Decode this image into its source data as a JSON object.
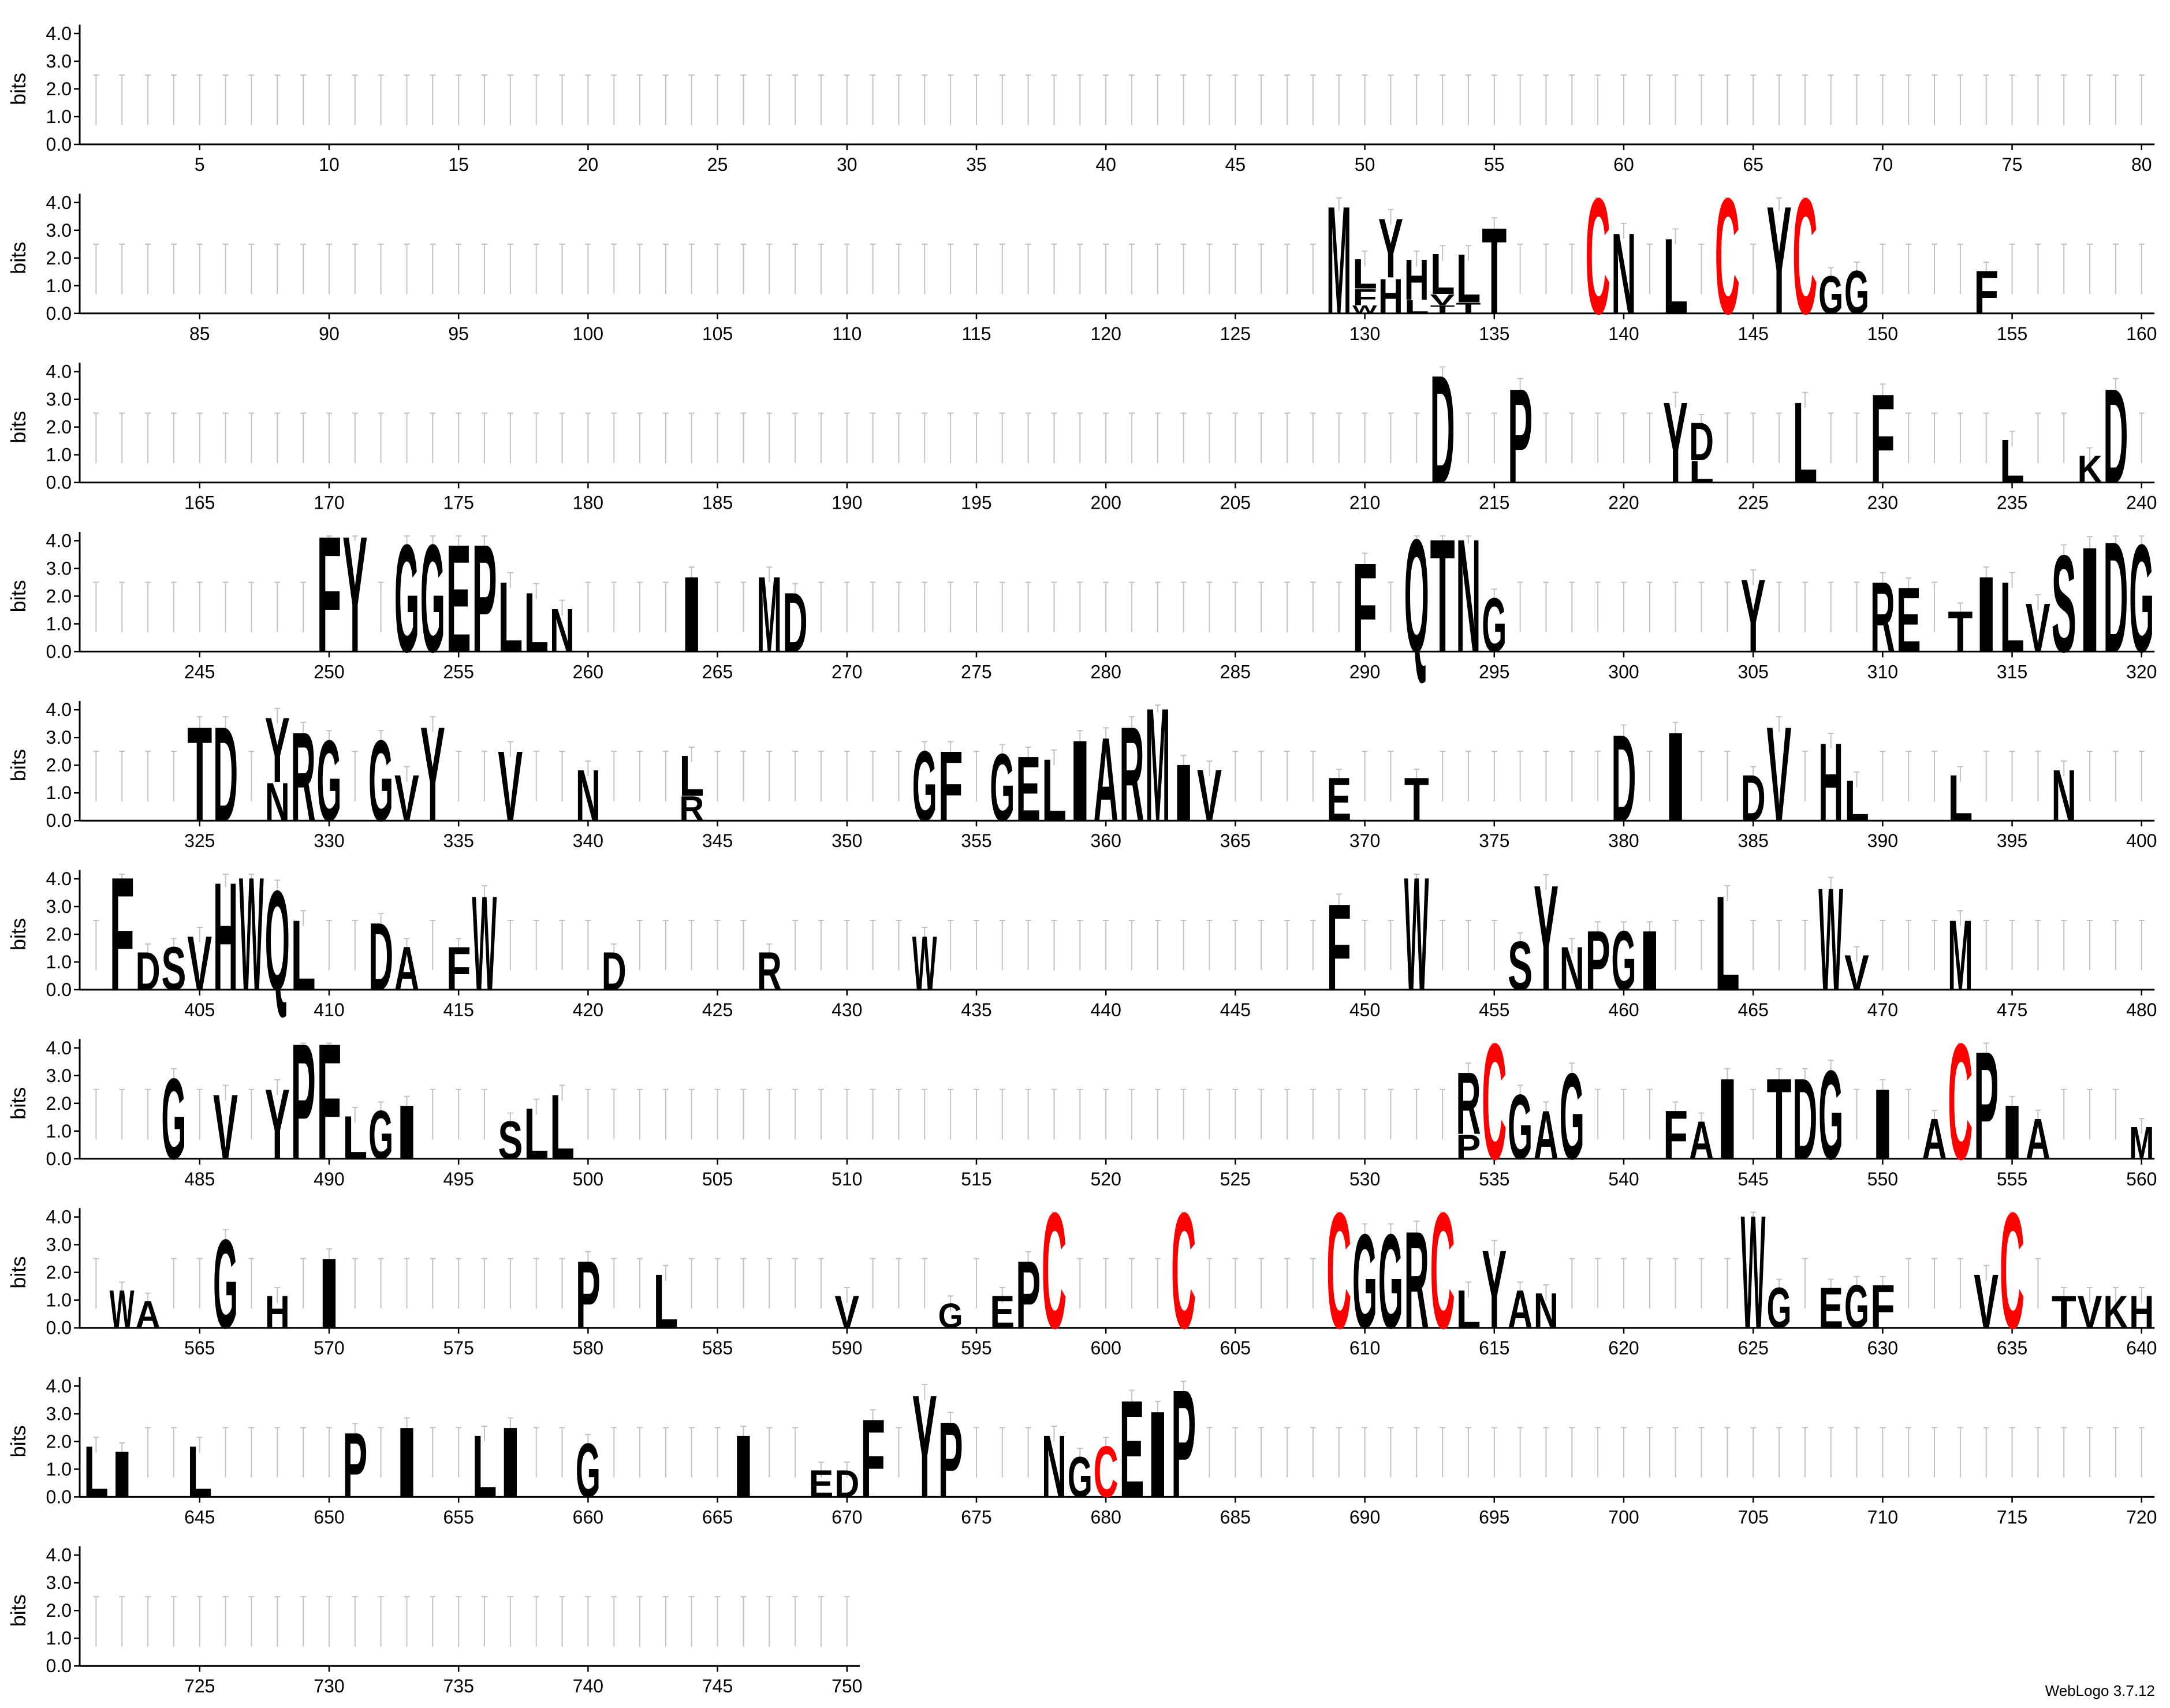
{
  "credit": "WebLogo 3.7.12",
  "colors": {
    "default": "#000000",
    "highlight": "#ff0000",
    "errorbar": "#c2c2c2"
  },
  "chart_data": {
    "type": "sequence-logo",
    "ylabel": "bits",
    "ylim": [
      0,
      4.32
    ],
    "yticks": [
      0,
      1,
      2,
      3,
      4
    ],
    "ytick_labels": [
      "0.0",
      "1.0",
      "2.0",
      "3.0",
      "4.0"
    ],
    "rows": [
      {
        "start": 1,
        "end": 80
      },
      {
        "start": 81,
        "end": 160
      },
      {
        "start": 161,
        "end": 240
      },
      {
        "start": 241,
        "end": 320
      },
      {
        "start": 321,
        "end": 400
      },
      {
        "start": 401,
        "end": 480
      },
      {
        "start": 481,
        "end": 560
      },
      {
        "start": 561,
        "end": 640
      },
      {
        "start": 641,
        "end": 720
      },
      {
        "start": 721,
        "end": 750
      }
    ],
    "columns": {
      "129": [
        [
          "M",
          4.0
        ]
      ],
      "130": [
        [
          "L",
          1.1
        ],
        [
          "F",
          0.6
        ],
        [
          "W",
          0.3
        ]
      ],
      "131": [
        [
          "Y",
          2.2
        ],
        [
          "H",
          1.3
        ]
      ],
      "132": [
        [
          "H",
          1.5
        ],
        [
          "L",
          0.5
        ]
      ],
      "133": [
        [
          "L",
          1.5
        ],
        [
          "V",
          0.4
        ],
        [
          "T",
          0.3
        ]
      ],
      "134": [
        [
          "L",
          1.8
        ],
        [
          "T",
          0.4
        ]
      ],
      "135": [
        [
          "T",
          3.2
        ]
      ],
      "139": [
        [
          "C",
          4.3
        ]
      ],
      "140": [
        [
          "N",
          3.0
        ]
      ],
      "142": [
        [
          "L",
          2.8
        ]
      ],
      "144": [
        [
          "C",
          4.3
        ]
      ],
      "146": [
        [
          "Y",
          4.0
        ]
      ],
      "147": [
        [
          "C",
          4.3
        ]
      ],
      "148": [
        [
          "G",
          1.4
        ]
      ],
      "149": [
        [
          "G",
          1.6
        ]
      ],
      "154": [
        [
          "F",
          1.6
        ]
      ],
      "213": [
        [
          "D",
          4.0
        ]
      ],
      "216": [
        [
          "P",
          3.5
        ]
      ],
      "222": [
        [
          "Y",
          3.0
        ]
      ],
      "223": [
        [
          "D",
          1.4
        ],
        [
          "L",
          0.8
        ]
      ],
      "227": [
        [
          "L",
          3.0
        ]
      ],
      "230": [
        [
          "F",
          3.3
        ]
      ],
      "235": [
        [
          "L",
          1.6
        ]
      ],
      "238": [
        [
          "K",
          1.0
        ]
      ],
      "239": [
        [
          "D",
          3.5
        ]
      ],
      "250": [
        [
          "F",
          4.3
        ]
      ],
      "251": [
        [
          "Y",
          4.3
        ]
      ],
      "253": [
        [
          "G",
          4.0
        ]
      ],
      "254": [
        [
          "G",
          4.0
        ]
      ],
      "255": [
        [
          "E",
          4.0
        ]
      ],
      "256": [
        [
          "P",
          4.0
        ]
      ],
      "257": [
        [
          "L",
          2.6
        ]
      ],
      "258": [
        [
          "L",
          2.2
        ]
      ],
      "259": [
        [
          "N",
          1.6
        ]
      ],
      "264": [
        [
          "I",
          2.8
        ]
      ],
      "267": [
        [
          "M",
          2.8
        ]
      ],
      "268": [
        [
          "D",
          2.2
        ]
      ],
      "290": [
        [
          "F",
          3.3
        ]
      ],
      "292": [
        [
          "Q",
          4.2
        ]
      ],
      "293": [
        [
          "T",
          4.2
        ]
      ],
      "294": [
        [
          "N",
          4.2
        ]
      ],
      "295": [
        [
          "G",
          2.0
        ]
      ],
      "305": [
        [
          "Y",
          2.7
        ]
      ],
      "310": [
        [
          "R",
          2.6
        ]
      ],
      "311": [
        [
          "E",
          2.4
        ]
      ],
      "313": [
        [
          "T",
          1.5
        ]
      ],
      "314": [
        [
          "I",
          2.8
        ]
      ],
      "315": [
        [
          "L",
          2.6
        ]
      ],
      "316": [
        [
          "V",
          1.8
        ]
      ],
      "317": [
        [
          "S",
          3.6
        ]
      ],
      "318": [
        [
          "I",
          3.9
        ]
      ],
      "319": [
        [
          "D",
          4.1
        ]
      ],
      "320": [
        [
          "G",
          4.0
        ]
      ],
      "325": [
        [
          "T",
          3.5
        ]
      ],
      "326": [
        [
          "D",
          3.5
        ]
      ],
      "328": [
        [
          "Y",
          2.4
        ],
        [
          "N",
          1.4
        ]
      ],
      "329": [
        [
          "R",
          3.3
        ]
      ],
      "330": [
        [
          "G",
          3.0
        ]
      ],
      "332": [
        [
          "G",
          3.0
        ]
      ],
      "333": [
        [
          "V",
          1.7
        ]
      ],
      "334": [
        [
          "Y",
          3.5
        ]
      ],
      "337": [
        [
          "V",
          2.6
        ]
      ],
      "340": [
        [
          "N",
          1.9
        ]
      ],
      "344": [
        [
          "L",
          1.5
        ],
        [
          "R",
          0.9
        ]
      ],
      "353": [
        [
          "G",
          2.6
        ]
      ],
      "354": [
        [
          "F",
          2.6
        ]
      ],
      "356": [
        [
          "G",
          2.5
        ]
      ],
      "357": [
        [
          "E",
          2.4
        ]
      ],
      "358": [
        [
          "L",
          2.3
        ]
      ],
      "359": [
        [
          "I",
          3.0
        ]
      ],
      "360": [
        [
          "A",
          3.1
        ]
      ],
      "361": [
        [
          "R",
          3.5
        ]
      ],
      "362": [
        [
          "M",
          4.2
        ]
      ],
      "363": [
        [
          "I",
          2.1
        ]
      ],
      "364": [
        [
          "V",
          1.9
        ]
      ],
      "369": [
        [
          "E",
          1.6
        ]
      ],
      "372": [
        [
          "T",
          1.6
        ]
      ],
      "380": [
        [
          "D",
          3.2
        ]
      ],
      "382": [
        [
          "I",
          3.3
        ]
      ],
      "385": [
        [
          "D",
          1.7
        ]
      ],
      "386": [
        [
          "V",
          3.5
        ]
      ],
      "388": [
        [
          "H",
          2.9
        ]
      ],
      "389": [
        [
          "L",
          1.5
        ]
      ],
      "393": [
        [
          "L",
          1.7
        ]
      ],
      "397": [
        [
          "N",
          1.9
        ]
      ],
      "402": [
        [
          "F",
          4.2
        ]
      ],
      "403": [
        [
          "D",
          1.4
        ]
      ],
      "404": [
        [
          "S",
          1.6
        ]
      ],
      "405": [
        [
          "V",
          2.0
        ]
      ],
      "406": [
        [
          "H",
          4.0
        ]
      ],
      "407": [
        [
          "W",
          4.2
        ]
      ],
      "408": [
        [
          "Q",
          3.7
        ]
      ],
      "409": [
        [
          "L",
          2.6
        ]
      ],
      "412": [
        [
          "D",
          2.5
        ]
      ],
      "413": [
        [
          "A",
          1.6
        ]
      ],
      "415": [
        [
          "F",
          1.6
        ]
      ],
      "416": [
        [
          "W",
          3.5
        ]
      ],
      "421": [
        [
          "D",
          1.4
        ]
      ],
      "427": [
        [
          "R",
          1.4
        ]
      ],
      "433": [
        [
          "W",
          2.0
        ]
      ],
      "449": [
        [
          "F",
          3.2
        ]
      ],
      "452": [
        [
          "W",
          4.2
        ]
      ],
      "456": [
        [
          "S",
          1.8
        ]
      ],
      "457": [
        [
          "Y",
          3.9
        ]
      ],
      "458": [
        [
          "N",
          1.6
        ]
      ],
      "459": [
        [
          "P",
          2.2
        ]
      ],
      "460": [
        [
          "G",
          2.2
        ]
      ],
      "461": [
        [
          "I",
          2.2
        ]
      ],
      "464": [
        [
          "L",
          3.5
        ]
      ],
      "468": [
        [
          "W",
          3.8
        ]
      ],
      "469": [
        [
          "V",
          1.3
        ]
      ],
      "473": [
        [
          "M",
          2.6
        ]
      ],
      "484": [
        [
          "G",
          3.0
        ]
      ],
      "486": [
        [
          "V",
          2.4
        ]
      ],
      "488": [
        [
          "Y",
          2.6
        ]
      ],
      "489": [
        [
          "P",
          4.3
        ]
      ],
      "490": [
        [
          "F",
          4.3
        ]
      ],
      "491": [
        [
          "L",
          1.6
        ]
      ],
      "492": [
        [
          "G",
          1.8
        ]
      ],
      "493": [
        [
          "I",
          2.0
        ]
      ],
      "497": [
        [
          "S",
          1.4
        ]
      ],
      "498": [
        [
          "L",
          1.9
        ]
      ],
      "499": [
        [
          "L",
          2.4
        ]
      ],
      "534": [
        [
          "R",
          2.3
        ],
        [
          "P",
          0.9
        ]
      ],
      "535": [
        [
          "C",
          4.3
        ]
      ],
      "536": [
        [
          "G",
          2.4
        ]
      ],
      "537": [
        [
          "A",
          1.8
        ]
      ],
      "538": [
        [
          "G",
          3.2
        ]
      ],
      "542": [
        [
          "F",
          1.8
        ]
      ],
      "543": [
        [
          "A",
          1.4
        ]
      ],
      "544": [
        [
          "I",
          3.0
        ]
      ],
      "546": [
        [
          "T",
          3.0
        ]
      ],
      "547": [
        [
          "D",
          3.0
        ]
      ],
      "548": [
        [
          "G",
          3.3
        ]
      ],
      "550": [
        [
          "I",
          2.6
        ]
      ],
      "552": [
        [
          "A",
          1.5
        ]
      ],
      "553": [
        [
          "C",
          4.3
        ]
      ],
      "554": [
        [
          "P",
          4.0
        ]
      ],
      "555": [
        [
          "I",
          2.0
        ]
      ],
      "556": [
        [
          "A",
          1.5
        ]
      ],
      "560": [
        [
          "M",
          1.2
        ]
      ],
      "562": [
        [
          "W",
          1.4
        ]
      ],
      "563": [
        [
          "A",
          1.0
        ]
      ],
      "566": [
        [
          "G",
          3.3
        ]
      ],
      "568": [
        [
          "H",
          1.2
        ]
      ],
      "570": [
        [
          "I",
          2.6
        ]
      ],
      "580": [
        [
          "P",
          2.5
        ]
      ],
      "583": [
        [
          "L",
          2.0
        ]
      ],
      "590": [
        [
          "V",
          1.2
        ]
      ],
      "594": [
        [
          "G",
          0.9
        ]
      ],
      "596": [
        [
          "E",
          1.2
        ]
      ],
      "597": [
        [
          "P",
          2.5
        ]
      ],
      "598": [
        [
          "C",
          4.3
        ]
      ],
      "603": [
        [
          "C",
          4.3
        ]
      ],
      "609": [
        [
          "C",
          4.3
        ]
      ],
      "610": [
        [
          "G",
          3.5
        ]
      ],
      "611": [
        [
          "G",
          3.5
        ]
      ],
      "612": [
        [
          "R",
          3.6
        ]
      ],
      "613": [
        [
          "C",
          4.3
        ]
      ],
      "614": [
        [
          "L",
          1.4
        ]
      ],
      "615": [
        [
          "Y",
          2.9
        ]
      ],
      "616": [
        [
          "A",
          1.4
        ]
      ],
      "617": [
        [
          "N",
          1.3
        ]
      ],
      "625": [
        [
          "W",
          4.2
        ]
      ],
      "626": [
        [
          "G",
          1.5
        ]
      ],
      "628": [
        [
          "E",
          1.5
        ]
      ],
      "629": [
        [
          "G",
          1.6
        ]
      ],
      "630": [
        [
          "F",
          1.6
        ]
      ],
      "634": [
        [
          "V",
          2.0
        ]
      ],
      "635": [
        [
          "C",
          4.3
        ]
      ],
      "637": [
        [
          "T",
          1.2
        ]
      ],
      "638": [
        [
          "V",
          1.2
        ]
      ],
      "639": [
        [
          "K",
          1.2
        ]
      ],
      "640": [
        [
          "H",
          1.2
        ]
      ],
      "641": [
        [
          "L",
          1.9
        ]
      ],
      "642": [
        [
          "I",
          1.7
        ]
      ],
      "645": [
        [
          "L",
          1.9
        ]
      ],
      "651": [
        [
          "P",
          2.4
        ]
      ],
      "653": [
        [
          "I",
          2.6
        ]
      ],
      "656": [
        [
          "L",
          2.3
        ]
      ],
      "657": [
        [
          "I",
          2.6
        ]
      ],
      "660": [
        [
          "G",
          2.0
        ]
      ],
      "666": [
        [
          "I",
          2.3
        ]
      ],
      "669": [
        [
          "E",
          1.0
        ]
      ],
      "670": [
        [
          "D",
          1.0
        ]
      ],
      "671": [
        [
          "F",
          2.9
        ]
      ],
      "673": [
        [
          "Y",
          3.8
        ]
      ],
      "674": [
        [
          "P",
          2.8
        ]
      ],
      "678": [
        [
          "N",
          2.3
        ]
      ],
      "679": [
        [
          "G",
          1.5
        ]
      ],
      "680": [
        [
          "C",
          1.9
        ]
      ],
      "681": [
        [
          "E",
          3.6
        ]
      ],
      "682": [
        [
          "I",
          3.2
        ]
      ],
      "683": [
        [
          "P",
          4.0
        ]
      ]
    }
  }
}
